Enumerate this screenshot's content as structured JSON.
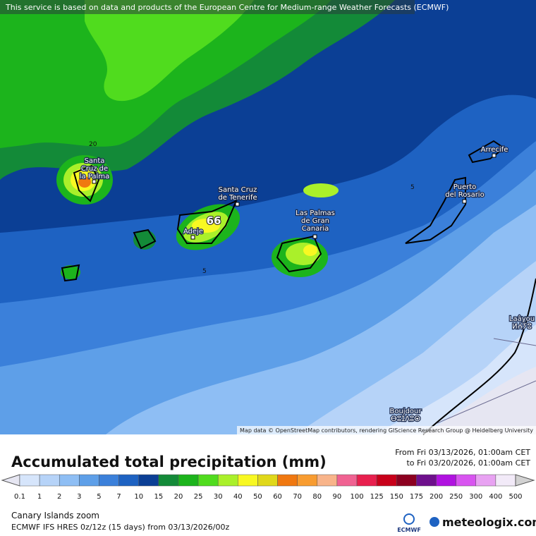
{
  "banner": "This service is based on data and products of the European Centre for Medium-range Weather Forecasts (ECMWF)",
  "map": {
    "places": [
      {
        "lines": [
          "Santa",
          "Cruz de",
          "la Palma"
        ]
      },
      {
        "lines": [
          "Santa Cruz",
          "de Tenerife"
        ]
      },
      {
        "lines": [
          "Adeje"
        ]
      },
      {
        "lines": [
          "Las Palmas",
          "de Gran",
          "Canaria"
        ]
      },
      {
        "lines": [
          "Arrecife"
        ]
      },
      {
        "lines": [
          "Puerto",
          "del Rosario"
        ]
      },
      {
        "lines": [
          "Laâyou",
          "ⵍⵄⵢⵓ"
        ]
      },
      {
        "lines": [
          "Boujdour",
          "ⴱⵓⵊⴷⵓⵔ"
        ]
      }
    ],
    "contour_labels": [
      "20",
      "5",
      "5"
    ],
    "max_label": "66",
    "attribution": "Map data © OpenStreetMap contributors, rendering GIScience Research Group @ Heidelberg University"
  },
  "legend": {
    "title": "Accumulated total precipitation (mm)",
    "period": [
      "From Fri 03/13/2026, 01:00am CET",
      "to Fri 03/20/2026, 01:00am CET"
    ],
    "scale_labels": [
      0.1,
      1,
      2,
      3,
      5,
      7,
      10,
      15,
      20,
      25,
      30,
      40,
      50,
      60,
      70,
      80,
      90,
      100,
      125,
      150,
      175,
      200,
      250,
      300,
      400,
      500
    ],
    "colors": [
      "#e6e6f2",
      "#d6e5fb",
      "#b6d3f8",
      "#8ebef4",
      "#5e9fe8",
      "#3b80da",
      "#1e62c2",
      "#0b3f95",
      "#138a38",
      "#1cb41c",
      "#50dc1e",
      "#aaf02a",
      "#f8f822",
      "#e0d81a",
      "#f07810",
      "#f89c30",
      "#f8b48a",
      "#f06292",
      "#e8204e",
      "#c8001a",
      "#8c0020",
      "#6e108c",
      "#b012e0",
      "#d854f0",
      "#e8a2f2",
      "#f2eaf8",
      "#d2d2d2",
      "#8a8a8a"
    ]
  },
  "footer": {
    "region": "Canary Islands zoom",
    "model": "ECMWF IFS HRES 0z/12z (15 days) from  03/13/2026/00z",
    "logo": "ECMWF",
    "brand": "meteologix.com"
  }
}
